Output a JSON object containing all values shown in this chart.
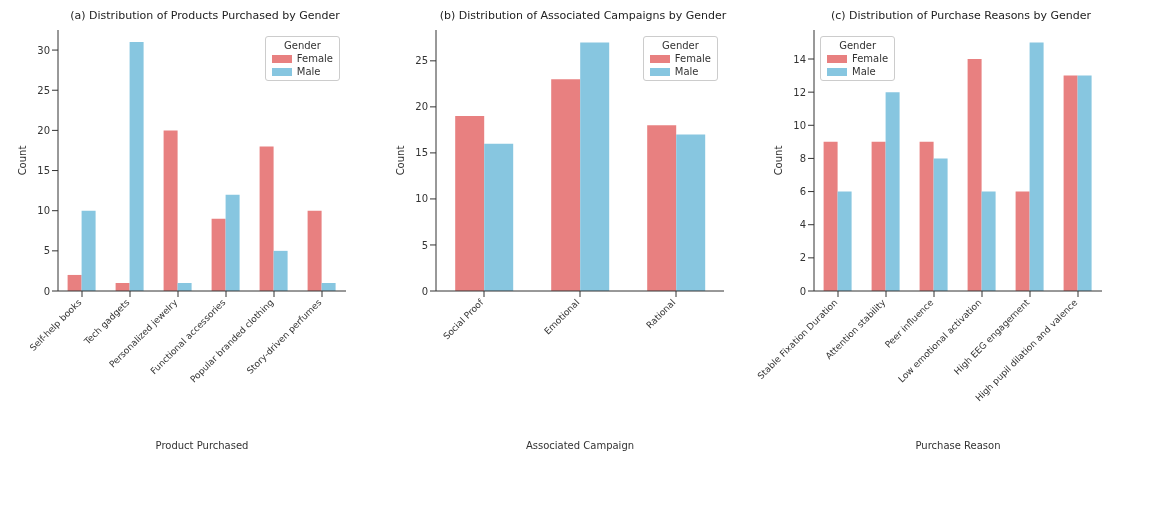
{
  "chart_data": [
    {
      "type": "bar",
      "title": "(a) Distribution of Products Purchased by Gender",
      "xlabel": "Product Purchased",
      "ylabel": "Count",
      "legend_title": "Gender",
      "legend": "top right",
      "categories": [
        "Self-help books",
        "Tech gadgets",
        "Personalized jewelry",
        "Functional accessories",
        "Popular branded clothing",
        "Story-driven perfumes"
      ],
      "ylim": [
        0,
        32.5
      ],
      "yticks": [
        0,
        5,
        10,
        15,
        20,
        25,
        30
      ],
      "series": [
        {
          "name": "Female",
          "color": "#e88080",
          "values": [
            2,
            1,
            20,
            9,
            18,
            10
          ]
        },
        {
          "name": "Male",
          "color": "#87c6e0",
          "values": [
            10,
            31,
            1,
            12,
            5,
            1
          ]
        }
      ]
    },
    {
      "type": "bar",
      "title": "(b) Distribution of Associated Campaigns by Gender",
      "xlabel": "Associated Campaign",
      "ylabel": "Count",
      "legend_title": "Gender",
      "legend": "top right",
      "categories": [
        "Social Proof",
        "Emotional",
        "Rational"
      ],
      "ylim": [
        0,
        28.35
      ],
      "yticks": [
        0,
        5,
        10,
        15,
        20,
        25
      ],
      "series": [
        {
          "name": "Female",
          "color": "#e88080",
          "values": [
            19,
            23,
            18
          ]
        },
        {
          "name": "Male",
          "color": "#87c6e0",
          "values": [
            16,
            27,
            17
          ]
        }
      ]
    },
    {
      "type": "bar",
      "title": "(c) Distribution of Purchase Reasons by Gender",
      "xlabel": "Purchase Reason",
      "ylabel": "Count",
      "legend_title": "Gender",
      "legend": "top left",
      "categories": [
        "Stable Fixation Duration",
        "Attention stability",
        "Peer influence",
        "Low emotional activation",
        "High EEG engagement",
        "High pupil dilation and valence"
      ],
      "ylim": [
        0,
        15.75
      ],
      "yticks": [
        0,
        2,
        4,
        6,
        8,
        10,
        12,
        14
      ],
      "series": [
        {
          "name": "Female",
          "color": "#e88080",
          "values": [
            9,
            9,
            9,
            14,
            6,
            13
          ]
        },
        {
          "name": "Male",
          "color": "#87c6e0",
          "values": [
            6,
            12,
            8,
            6,
            15,
            13
          ]
        }
      ]
    }
  ]
}
